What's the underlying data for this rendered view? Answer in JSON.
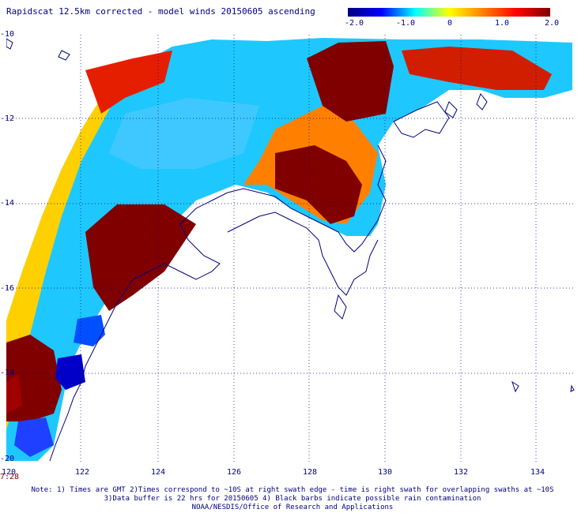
{
  "title": "Rapidscat 12.5km corrected - model winds 20150605 ascending",
  "colorbar": {
    "ticks": [
      "-2.0",
      "-1.0",
      "0",
      "1.0",
      "2.0"
    ],
    "colors": [
      "#000080",
      "#0000ff",
      "#00ffff",
      "#ffff00",
      "#ff8000",
      "#ff0000",
      "#800000"
    ]
  },
  "axes": {
    "y_labels": [
      "-10",
      "-12",
      "-14",
      "-16",
      "-18",
      "-20"
    ],
    "x_labels": [
      "120",
      "122",
      "124",
      "126",
      "128",
      "130",
      "132",
      "134"
    ]
  },
  "time_label": "7:28",
  "notes": [
    "Note: 1) Times are GMT 2)Times correspond to ~10S at right swath edge - time is right swath for overlapping swaths at ~10S",
    "3)Data buffer is 22 hrs for 20150605 4) Black barbs indicate possible rain contamination",
    "NOAA/NESDIS/Office of Research and Applications"
  ],
  "colors": {
    "grid": "#000080",
    "coast": "#000080",
    "label": "#000080",
    "time": "#8b0000"
  }
}
